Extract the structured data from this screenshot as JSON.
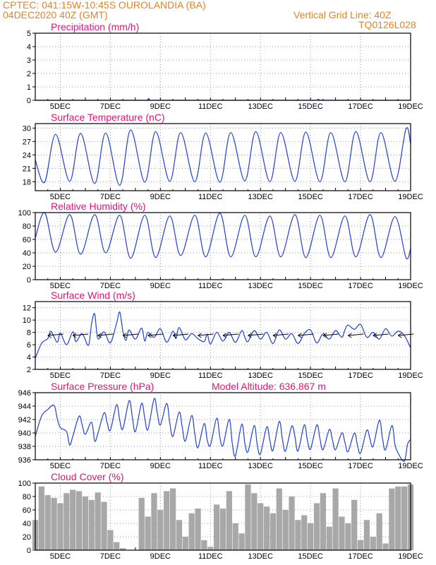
{
  "header": {
    "line1_left": "CPTEC:   041:15W-10:45S   OUROLANDIA (BA)",
    "line2_left": "04DEC2020 40Z (GMT)",
    "line1_right": "Vertical Grid Line: 40Z",
    "line2_right": "TQ0126L028"
  },
  "colors": {
    "header": "#e8821e",
    "title": "#e0147a",
    "series": "#1f3fd8",
    "bars": "#a8a8a8",
    "grid": "#9a9a9a",
    "axis": "#000000"
  },
  "x_tick_labels": [
    "5DEC",
    "7DEC",
    "9DEC",
    "11DEC",
    "13DEC",
    "15DEC",
    "17DEC",
    "19DEC"
  ],
  "chart_data": [
    {
      "id": "precip",
      "type": "line",
      "title": "Precipitation (mm/h)",
      "ylim": [
        0,
        5
      ],
      "yticks": [
        0,
        1,
        2,
        3,
        4,
        5
      ],
      "x": [
        0,
        36,
        36.3,
        36.6,
        90,
        90.5,
        91,
        120
      ],
      "y": [
        0,
        0,
        0.15,
        0,
        0,
        0.08,
        0,
        0
      ]
    },
    {
      "id": "temp",
      "type": "line",
      "title": "Surface Temperature (nC)",
      "ylim": [
        16,
        31
      ],
      "yticks": [
        18,
        21,
        24,
        27,
        30
      ],
      "daily_min": [
        17.9,
        18.1,
        17.6,
        17.2,
        17.9,
        18.1,
        18.0,
        17.9,
        18.2,
        18.0,
        18.1,
        18.0,
        18.0,
        18.0,
        18.1
      ],
      "daily_max": [
        28.6,
        28.8,
        28.9,
        29.6,
        29.2,
        29.0,
        28.9,
        29.0,
        29.2,
        29.0,
        29.1,
        29.0,
        29.2,
        29.0,
        29.8
      ],
      "start": 22.9,
      "end": 26.5
    },
    {
      "id": "rh",
      "type": "line",
      "title": "Relative Humidity (%)",
      "ylim": [
        0,
        100
      ],
      "yticks": [
        0,
        20,
        40,
        60,
        80,
        100
      ],
      "daily_max": [
        100,
        97,
        97,
        96,
        96,
        95,
        96,
        99,
        96,
        95,
        97,
        96,
        95,
        97,
        94
      ],
      "daily_min": [
        41,
        38,
        40,
        32,
        33,
        36,
        34,
        34,
        34,
        34,
        33,
        33,
        34,
        33,
        33
      ],
      "start": 62,
      "end": 46
    },
    {
      "id": "wind",
      "type": "line",
      "title": "Surface Wind (m/s)",
      "ylim": [
        2,
        13
      ],
      "yticks": [
        2,
        4,
        6,
        8,
        10,
        12
      ],
      "x": [
        0,
        2,
        4,
        5,
        7,
        8,
        10,
        12,
        13,
        15,
        17,
        18,
        19,
        20,
        22,
        24,
        26,
        27,
        28,
        29,
        30,
        32,
        34,
        35,
        36,
        38,
        40,
        42,
        44,
        45,
        46,
        48,
        50,
        52,
        54,
        55,
        56,
        58,
        60,
        62,
        64,
        66,
        67,
        68,
        70,
        72,
        74,
        76,
        78,
        80,
        82,
        84,
        86,
        88,
        90,
        92,
        94,
        96,
        98,
        99,
        100,
        102,
        104,
        106,
        108,
        110,
        112,
        114,
        116,
        118,
        120
      ],
      "y": [
        3.8,
        6.2,
        7.0,
        8.2,
        6.4,
        7.9,
        6.0,
        8.1,
        6.5,
        7.8,
        5.9,
        9.4,
        11.0,
        7.0,
        8.1,
        6.3,
        9.5,
        11.3,
        8.2,
        6.7,
        8.4,
        6.9,
        8.7,
        6.6,
        8.0,
        7.2,
        8.6,
        6.4,
        8.2,
        7.0,
        8.8,
        6.8,
        7.8,
        7.0,
        6.5,
        7.7,
        6.1,
        8.0,
        6.6,
        8.0,
        6.4,
        8.3,
        7.2,
        6.5,
        8.3,
        6.9,
        8.0,
        6.2,
        8.4,
        6.9,
        7.8,
        6.2,
        7.8,
        8.4,
        6.3,
        7.8,
        6.9,
        8.3,
        7.2,
        8.4,
        9.2,
        8.5,
        9.3,
        7.2,
        8.0,
        6.9,
        8.6,
        7.4,
        8.2,
        7.5,
        5.5
      ]
    },
    {
      "id": "pressure",
      "type": "line",
      "title": "Surface Pressure (hPa)",
      "annotation": "Model Altitude: 636.867 m",
      "ylim": [
        936,
        946
      ],
      "yticks": [
        936,
        938,
        940,
        942,
        944,
        946
      ],
      "x": [
        0,
        2,
        4,
        6,
        7,
        8,
        10,
        11,
        12,
        14,
        15,
        16,
        18,
        19,
        20,
        22,
        23,
        24,
        26,
        27,
        28,
        30,
        31,
        32,
        34,
        35,
        36,
        38,
        39,
        40,
        42,
        43,
        44,
        46,
        47,
        48,
        50,
        51,
        52,
        54,
        55,
        56,
        58,
        59,
        60,
        62,
        63,
        64,
        66,
        67,
        68,
        70,
        71,
        72,
        74,
        75,
        76,
        78,
        79,
        80,
        82,
        83,
        84,
        86,
        87,
        88,
        90,
        91,
        92,
        94,
        95,
        96,
        98,
        99,
        100,
        102,
        103,
        104,
        106,
        107,
        108,
        110,
        111,
        112,
        114,
        115,
        116,
        118,
        119,
        120
      ],
      "y": [
        939.5,
        942.5,
        943.5,
        944.1,
        942.2,
        940.8,
        940.2,
        938.2,
        939.5,
        942.5,
        941.2,
        939.8,
        941.6,
        938.8,
        939.9,
        943.0,
        941.5,
        940.4,
        944.2,
        941.9,
        940.6,
        944.8,
        942.5,
        940.2,
        944.4,
        942.2,
        940.5,
        945.1,
        943.0,
        941.2,
        944.4,
        941.5,
        939.5,
        943.1,
        940.8,
        938.8,
        942.6,
        939.9,
        937.8,
        941.4,
        938.9,
        938.2,
        942.2,
        939.4,
        938.1,
        942.0,
        938.4,
        936.6,
        941.3,
        938.5,
        937.2,
        941.1,
        938.1,
        936.9,
        940.9,
        938.9,
        937.4,
        941.7,
        939.1,
        937.3,
        941.0,
        939.5,
        937.3,
        941.2,
        938.9,
        937.6,
        941.2,
        939.2,
        937.5,
        940.5,
        939.0,
        937.5,
        940.0,
        938.6,
        937.2,
        940.0,
        938.2,
        937.0,
        940.4,
        939.1,
        938.0,
        941.9,
        939.2,
        937.5,
        941.1,
        938.3,
        937.0,
        935.8,
        938.3,
        939.0
      ]
    },
    {
      "id": "cloud",
      "type": "bar",
      "title": "Cloud Cover (%)",
      "ylim": [
        0,
        100
      ],
      "yticks": [
        0,
        20,
        40,
        60,
        80,
        100
      ],
      "x": [
        0,
        2,
        4,
        6,
        8,
        10,
        12,
        14,
        16,
        18,
        20,
        22,
        24,
        26,
        28,
        30,
        32,
        34,
        36,
        38,
        40,
        42,
        44,
        46,
        48,
        50,
        52,
        54,
        56,
        58,
        60,
        62,
        64,
        66,
        68,
        70,
        72,
        74,
        76,
        78,
        80,
        82,
        84,
        86,
        88,
        90,
        92,
        94,
        96,
        98,
        100,
        102,
        104,
        106,
        108,
        110,
        112,
        114,
        116,
        118,
        120
      ],
      "values": [
        45,
        95,
        82,
        78,
        70,
        85,
        90,
        88,
        80,
        75,
        86,
        72,
        30,
        12,
        3,
        0,
        0,
        78,
        50,
        85,
        60,
        88,
        92,
        45,
        20,
        55,
        62,
        15,
        5,
        68,
        62,
        88,
        40,
        25,
        98,
        85,
        70,
        65,
        55,
        92,
        60,
        80,
        45,
        52,
        40,
        70,
        85,
        35,
        92,
        50,
        40,
        75,
        15,
        45,
        20,
        55,
        10,
        92,
        95,
        95,
        98
      ]
    }
  ]
}
